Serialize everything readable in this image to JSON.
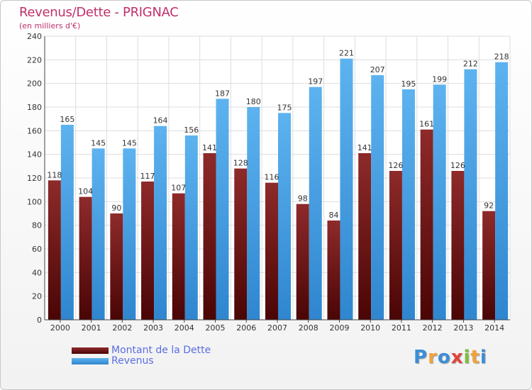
{
  "header": {
    "title": "Revenus/Dette - PRIGNAC",
    "subtitle": "(en milliers d'€)"
  },
  "chart_data": {
    "type": "bar",
    "title": "Revenus/Dette - PRIGNAC",
    "ylabel": "(en milliers d'€)",
    "xlabel": "",
    "categories": [
      "2000",
      "2001",
      "2002",
      "2003",
      "2004",
      "2005",
      "2006",
      "2007",
      "2008",
      "2009",
      "2010",
      "2011",
      "2012",
      "2013",
      "2014"
    ],
    "series": [
      {
        "name": "Montant de la Dette",
        "color": "#7a1a1a",
        "values": [
          118,
          104,
          90,
          117,
          107,
          141,
          128,
          116,
          98,
          84,
          141,
          126,
          161,
          126,
          92
        ]
      },
      {
        "name": "Revenus",
        "color": "#4da6e8",
        "values": [
          165,
          145,
          145,
          164,
          156,
          187,
          180,
          175,
          197,
          221,
          207,
          195,
          199,
          212,
          218
        ]
      }
    ],
    "ylim": [
      0,
      240
    ],
    "yticks": [
      0,
      20,
      40,
      60,
      80,
      100,
      120,
      140,
      160,
      180,
      200,
      220,
      240
    ],
    "grid": true,
    "legend": "bottom-left"
  },
  "legend": {
    "items": [
      {
        "label": "Montant de la Dette",
        "color": "#7a1a1a"
      },
      {
        "label": "Revenus",
        "color": "#4da6e8"
      }
    ]
  },
  "logo": {
    "letters": [
      "P",
      "r",
      "o",
      "x",
      "i",
      "t",
      "i"
    ],
    "colors": [
      "#3b8ed8",
      "#f2a23a",
      "#3b8ed8",
      "#e0453a",
      "#7cbf3a",
      "#f2a23a",
      "#3b8ed8"
    ]
  }
}
